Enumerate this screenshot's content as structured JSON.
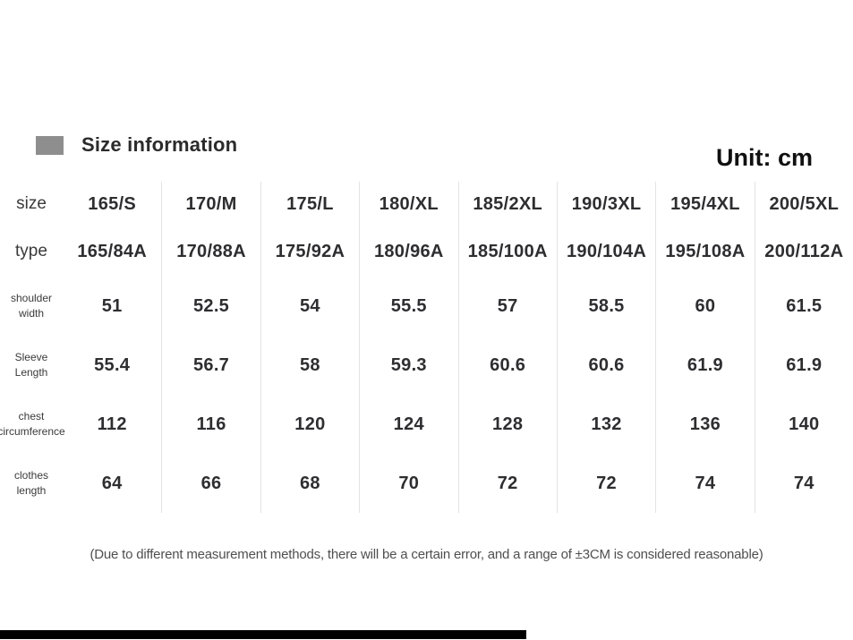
{
  "header": {
    "title": "Size information",
    "unit_label": "Unit: cm"
  },
  "chart_data": {
    "type": "table",
    "title": "Size information",
    "unit": "cm",
    "corner_label": "size",
    "column_headers": [
      "165/S",
      "170/M",
      "175/L",
      "180/XL",
      "185/2XL",
      "190/3XL",
      "195/4XL",
      "200/5XL"
    ],
    "rows": [
      {
        "lines": [
          "type"
        ],
        "values": [
          "165/84A",
          "170/88A",
          "175/92A",
          "180/96A",
          "185/100A",
          "190/104A",
          "195/108A",
          "200/112A"
        ]
      },
      {
        "lines": [
          "shoulder",
          "width"
        ],
        "values": [
          "51",
          "52.5",
          "54",
          "55.5",
          "57",
          "58.5",
          "60",
          "61.5"
        ]
      },
      {
        "lines": [
          "Sleeve",
          "Length"
        ],
        "values": [
          "55.4",
          "56.7",
          "58",
          "59.3",
          "60.6",
          "60.6",
          "61.9",
          "61.9"
        ]
      },
      {
        "lines": [
          "chest",
          "circumference"
        ],
        "values": [
          "112",
          "116",
          "120",
          "124",
          "128",
          "132",
          "136",
          "140"
        ]
      },
      {
        "lines": [
          "clothes",
          "length"
        ],
        "values": [
          "64",
          "66",
          "68",
          "70",
          "72",
          "72",
          "74",
          "74"
        ]
      }
    ],
    "note": "(Due to different measurement methods, there will be a certain error, and a range of ±3CM is considered reasonable)",
    "layout": {
      "grid": "off",
      "unit_position": "top-right"
    }
  },
  "colors": {
    "legend_square": "#8e8e8e",
    "text_dark": "#2e2e31",
    "label_gray": "#3a3a3a",
    "separator": "#e3e3e3",
    "note_gray": "#4f4f4f",
    "bottom_bar": "#000000"
  }
}
